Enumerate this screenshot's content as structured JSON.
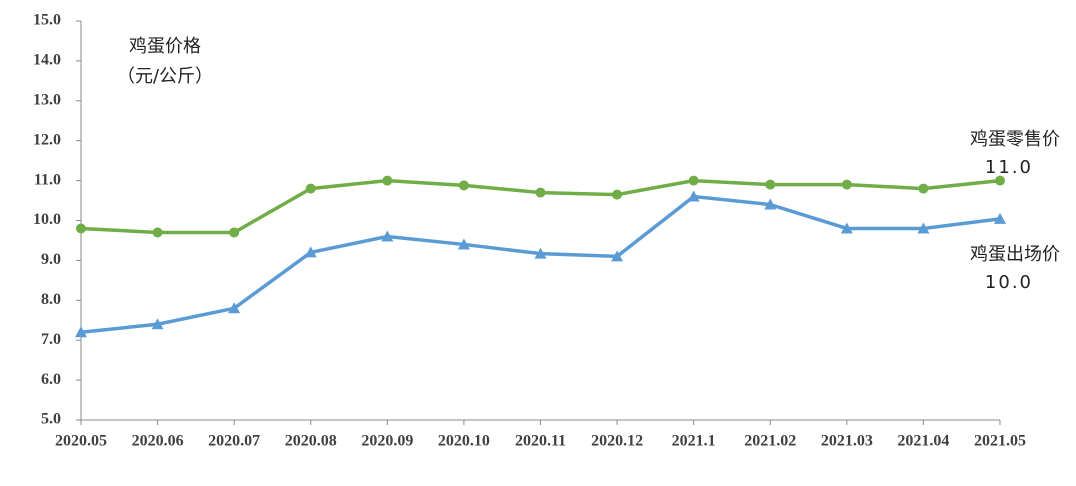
{
  "chart_data": {
    "type": "line",
    "ylabel": [
      "鸡蛋价格",
      "（元/公斤）"
    ],
    "categories": [
      "2020.05",
      "2020.06",
      "2020.07",
      "2020.08",
      "2020.09",
      "2020.10",
      "2020.11",
      "2020.12",
      "2021.1",
      "2021.02",
      "2021.03",
      "2021.04",
      "2021.05"
    ],
    "series": [
      {
        "name": "鸡蛋零售价",
        "color": "#70ad47",
        "marker": "circle",
        "values": [
          9.8,
          9.7,
          9.7,
          10.8,
          11.0,
          10.88,
          10.7,
          10.65,
          11.0,
          10.9,
          10.9,
          10.8,
          11.0
        ],
        "value_labels": [
          null,
          null,
          null,
          null,
          null,
          null,
          null,
          null,
          null,
          null,
          null,
          null,
          "11.0"
        ]
      },
      {
        "name": "鸡蛋出场价",
        "color": "#5b9bd5",
        "marker": "triangle",
        "values": [
          7.2,
          7.4,
          7.8,
          9.2,
          9.6,
          9.4,
          9.17,
          9.1,
          10.6,
          10.4,
          9.8,
          9.8,
          10.04
        ],
        "value_labels": [
          null,
          null,
          null,
          null,
          null,
          null,
          null,
          null,
          null,
          null,
          null,
          null,
          "10.0"
        ]
      }
    ],
    "ylim": [
      5,
      15
    ],
    "yticks": [
      {
        "value": 5,
        "label": "5.0"
      },
      {
        "value": 6,
        "label": "6.0"
      },
      {
        "value": 7,
        "label": "7.0"
      },
      {
        "value": 8,
        "label": "8.0"
      },
      {
        "value": 9,
        "label": "9.0"
      },
      {
        "value": 10,
        "label": "10.0"
      },
      {
        "value": 11,
        "label": "11.0"
      },
      {
        "value": 12,
        "label": "12.0"
      },
      {
        "value": 13,
        "label": "13.0"
      },
      {
        "value": 14,
        "label": "14.0"
      },
      {
        "value": 15,
        "label": "15.0"
      }
    ],
    "grid": false
  }
}
